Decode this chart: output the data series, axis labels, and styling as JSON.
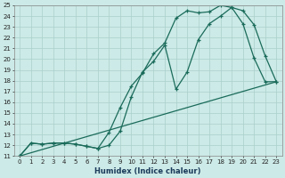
{
  "xlabel": "Humidex (Indice chaleur)",
  "bg_color": "#cceae7",
  "grid_color": "#aacfcb",
  "line_color": "#1a6b5a",
  "xlim": [
    -0.5,
    23.5
  ],
  "ylim": [
    11,
    25
  ],
  "xticks": [
    0,
    1,
    2,
    3,
    4,
    5,
    6,
    7,
    8,
    9,
    10,
    11,
    12,
    13,
    14,
    15,
    16,
    17,
    18,
    19,
    20,
    21,
    22,
    23
  ],
  "yticks": [
    11,
    12,
    13,
    14,
    15,
    16,
    17,
    18,
    19,
    20,
    21,
    22,
    23,
    24,
    25
  ],
  "line1_x": [
    0,
    1,
    2,
    3,
    4,
    5,
    6,
    7,
    8,
    9,
    10,
    11,
    12,
    13,
    14,
    15,
    16,
    17,
    18,
    19,
    20,
    21,
    22,
    23
  ],
  "line1_y": [
    11,
    12.2,
    12.1,
    12.2,
    12.2,
    12.1,
    11.9,
    11.7,
    13.2,
    15.5,
    17.5,
    18.7,
    20.5,
    21.5,
    23.8,
    24.5,
    24.3,
    24.4,
    25.0,
    24.8,
    23.3,
    20.1,
    17.9,
    17.9
  ],
  "line2_x": [
    0,
    1,
    2,
    3,
    4,
    5,
    6,
    7,
    8,
    9,
    10,
    11,
    12,
    13,
    14,
    15,
    16,
    17,
    18,
    19,
    20,
    21,
    22,
    23
  ],
  "line2_y": [
    11,
    12.2,
    12.1,
    12.2,
    12.2,
    12.1,
    11.9,
    11.7,
    12.0,
    13.3,
    16.5,
    18.8,
    19.8,
    21.3,
    17.2,
    18.8,
    21.8,
    23.3,
    24.0,
    24.8,
    24.5,
    23.2,
    20.3,
    17.9
  ],
  "line3_x": [
    0,
    23
  ],
  "line3_y": [
    11,
    17.9
  ]
}
